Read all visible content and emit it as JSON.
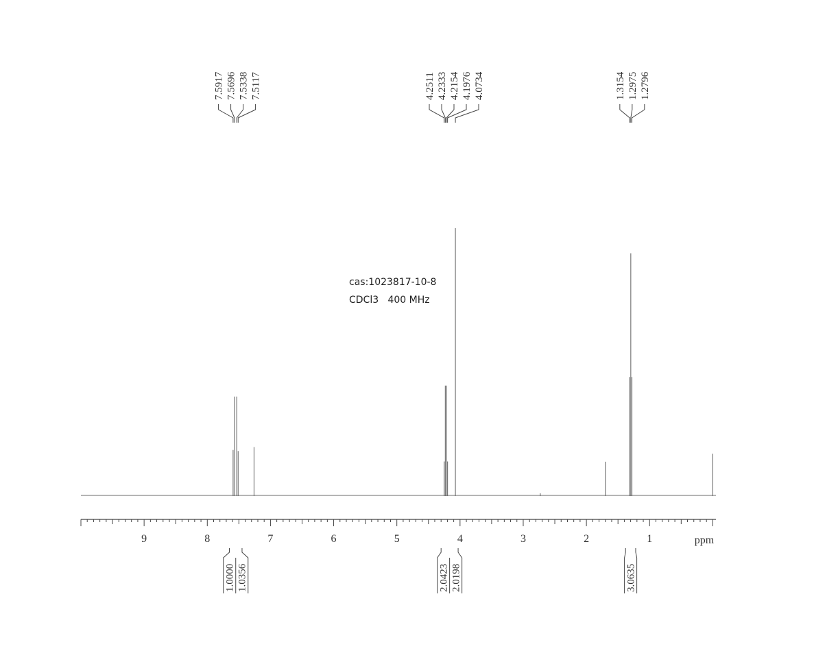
{
  "chart_data": {
    "type": "line",
    "xaxis": {
      "label": "ppm",
      "reversed": true,
      "range": [
        10.0,
        -0.05
      ],
      "tick_labels": [
        "9",
        "8",
        "7",
        "6",
        "5",
        "4",
        "3",
        "2",
        "1"
      ],
      "tick_values": [
        9,
        8,
        7,
        6,
        5,
        4,
        3,
        2,
        1
      ]
    },
    "annotation": {
      "cas": "cas:1023817-10-8",
      "conditions": "CDCl3   400 MHz"
    },
    "peak_labels": [
      {
        "group": "aromatic",
        "labels": [
          "7.5917",
          "7.5696",
          "7.5338",
          "7.5117"
        ],
        "ppm": [
          7.5917,
          7.5696,
          7.5338,
          7.5117
        ]
      },
      {
        "group": "ch2",
        "labels": [
          "4.2511",
          "4.2333",
          "4.2154",
          "4.1976",
          "4.0734"
        ],
        "ppm": [
          4.2511,
          4.2333,
          4.2154,
          4.1976,
          4.0734
        ]
      },
      {
        "group": "ch3",
        "labels": [
          "1.3154",
          "1.2975",
          "1.2796"
        ],
        "ppm": [
          1.3154,
          1.2975,
          1.2796
        ]
      }
    ],
    "peaks": [
      {
        "ppm": 7.5917,
        "height": 0.17
      },
      {
        "ppm": 7.5696,
        "height": 0.37
      },
      {
        "ppm": 7.5338,
        "height": 0.37
      },
      {
        "ppm": 7.5117,
        "height": 0.166
      },
      {
        "ppm": 7.26,
        "height": 0.181
      },
      {
        "ppm": 4.2511,
        "height": 0.127
      },
      {
        "ppm": 4.2333,
        "height": 0.411
      },
      {
        "ppm": 4.2154,
        "height": 0.411
      },
      {
        "ppm": 4.1976,
        "height": 0.127
      },
      {
        "ppm": 4.0734,
        "height": 1.0
      },
      {
        "ppm": 2.73,
        "height": 0.008
      },
      {
        "ppm": 1.7,
        "height": 0.126
      },
      {
        "ppm": 1.3154,
        "height": 0.443
      },
      {
        "ppm": 1.2975,
        "height": 0.906
      },
      {
        "ppm": 1.2796,
        "height": 0.443
      },
      {
        "ppm": 0.0,
        "height": 0.156
      }
    ],
    "integrals": [
      {
        "labels": [
          "1.0000",
          "1.0356"
        ],
        "ppm_range": [
          7.65,
          7.45
        ]
      },
      {
        "labels": [
          "2.0423",
          "2.0198"
        ],
        "ppm_range": [
          4.3,
          4.03
        ]
      },
      {
        "labels": [
          "3.0635"
        ],
        "ppm_range": [
          1.38,
          1.22
        ]
      }
    ]
  },
  "colors": {
    "trace": "#6b6b6b",
    "axis": "#444444"
  }
}
